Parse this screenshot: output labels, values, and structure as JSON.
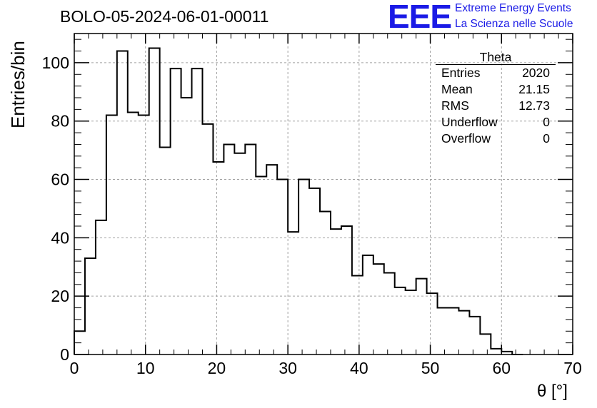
{
  "header": {
    "title": "BOLO-05-2024-06-01-00011",
    "logo_text": "EEE",
    "logo_line1": "Extreme Energy Events",
    "logo_line2": "La Scienza nelle Scuole"
  },
  "stats": {
    "title": "Theta",
    "rows": [
      {
        "label": "Entries",
        "value": "2020"
      },
      {
        "label": "Mean",
        "value": "21.15"
      },
      {
        "label": "RMS",
        "value": "12.73"
      },
      {
        "label": "Underflow",
        "value": "0"
      },
      {
        "label": "Overflow",
        "value": "0"
      }
    ]
  },
  "chart_data": {
    "type": "histogram",
    "xlabel": "θ [°]",
    "ylabel": "Entries/bin",
    "xlim": [
      0,
      70
    ],
    "ylim": [
      0,
      110
    ],
    "grid": true,
    "bin_width": 1.5,
    "bin_edges_start": 0,
    "values": [
      8,
      33,
      46,
      82,
      104,
      83,
      82,
      105,
      71,
      98,
      88,
      98,
      79,
      66,
      72,
      69,
      72,
      61,
      65,
      60,
      42,
      60,
      57,
      49,
      43,
      44,
      27,
      34,
      31,
      28,
      23,
      22,
      26,
      21,
      16,
      16,
      15,
      13,
      7,
      2,
      1,
      0
    ],
    "x_ticks": [
      "0",
      "10",
      "20",
      "30",
      "40",
      "50",
      "60",
      "70"
    ],
    "y_ticks": [
      "0",
      "20",
      "40",
      "60",
      "80",
      "100"
    ],
    "colors": {
      "line": "#000000",
      "grid": "#a0a0a0",
      "logo": "#1a1ae6"
    }
  }
}
